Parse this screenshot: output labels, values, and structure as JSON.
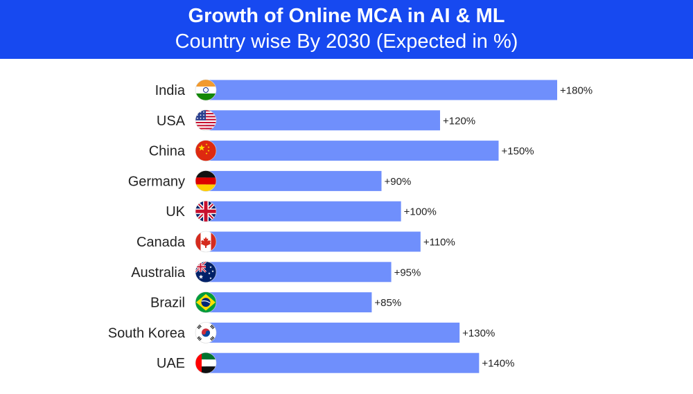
{
  "header": {
    "title": "Growth of Online MCA in AI & ML",
    "subtitle": "Country wise By 2030 (Expected in %)"
  },
  "colors": {
    "header_bg": "#1749f0",
    "bar": "#6f8ffc",
    "text": "#222222"
  },
  "chart_data": {
    "type": "bar",
    "orientation": "horizontal",
    "title": "Growth of Online MCA in AI & ML",
    "subtitle": "Country wise By 2030 (Expected in %)",
    "categories": [
      "India",
      "USA",
      "China",
      "Germany",
      "UK",
      "Canada",
      "Australia",
      "Brazil",
      "South Korea",
      "UAE"
    ],
    "values": [
      180,
      120,
      150,
      90,
      100,
      110,
      95,
      85,
      130,
      140
    ],
    "value_labels": [
      "+180%",
      "+120%",
      "+150%",
      "+90%",
      "+100%",
      "+110%",
      "+95%",
      "+85%",
      "+130%",
      "+140%"
    ],
    "flags": [
      "india-flag-icon",
      "usa-flag-icon",
      "china-flag-icon",
      "germany-flag-icon",
      "uk-flag-icon",
      "canada-flag-icon",
      "australia-flag-icon",
      "brazil-flag-icon",
      "south-korea-flag-icon",
      "uae-flag-icon"
    ],
    "xlim": [
      0,
      180
    ],
    "grid": false,
    "legend": "none"
  }
}
